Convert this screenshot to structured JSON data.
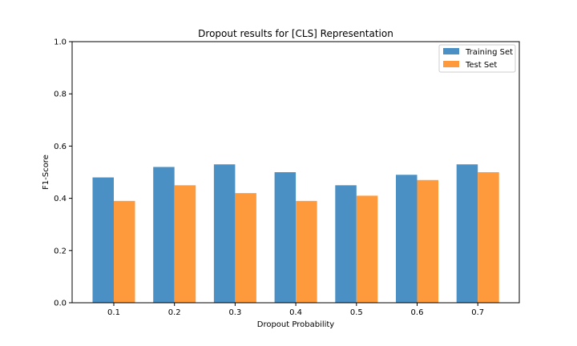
{
  "chart_data": {
    "type": "bar",
    "title": "Dropout results for [CLS] Representation",
    "xlabel": "Dropout Probability",
    "ylabel": "F1-Score",
    "categories": [
      "0.1",
      "0.2",
      "0.3",
      "0.4",
      "0.5",
      "0.6",
      "0.7"
    ],
    "series": [
      {
        "name": "Training Set",
        "color": "#4a90c4",
        "values": [
          0.48,
          0.52,
          0.53,
          0.5,
          0.45,
          0.49,
          0.53
        ]
      },
      {
        "name": "Test Set",
        "color": "#ff9a3c",
        "values": [
          0.39,
          0.45,
          0.42,
          0.39,
          0.41,
          0.47,
          0.5
        ]
      }
    ],
    "ylim": [
      0,
      1.0
    ],
    "yticks": [
      "0.0",
      "0.2",
      "0.4",
      "0.6",
      "0.8",
      "1.0"
    ],
    "grid": false,
    "legend_position": "top-right"
  }
}
